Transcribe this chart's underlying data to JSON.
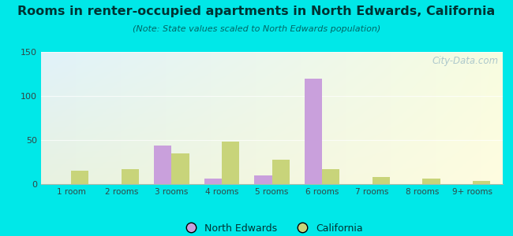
{
  "title": "Rooms in renter-occupied apartments in North Edwards, California",
  "subtitle": "(Note: State values scaled to North Edwards population)",
  "categories": [
    "1 room",
    "2 rooms",
    "3 rooms",
    "4 rooms",
    "5 rooms",
    "6 rooms",
    "7 rooms",
    "8 rooms",
    "9+ rooms"
  ],
  "north_edwards": [
    0,
    0,
    44,
    6,
    10,
    120,
    0,
    0,
    0
  ],
  "california": [
    15,
    17,
    35,
    48,
    28,
    17,
    8,
    6,
    4
  ],
  "ne_color": "#c9a0dc",
  "ca_color": "#c8d47a",
  "bg_outer": "#00e8e8",
  "ylim": [
    0,
    150
  ],
  "yticks": [
    0,
    50,
    100,
    150
  ],
  "bar_width": 0.35,
  "legend_ne": "North Edwards",
  "legend_ca": "California",
  "title_color": "#003333",
  "subtitle_color": "#006666",
  "tick_color": "#334444",
  "watermark_color": "#a0bfc8",
  "title_fontsize": 11.5,
  "subtitle_fontsize": 8.0
}
